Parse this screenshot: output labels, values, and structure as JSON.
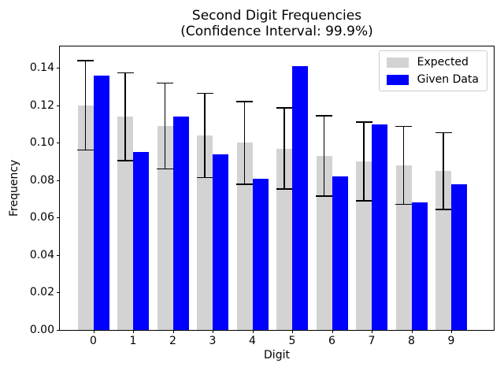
{
  "figure": {
    "title_line1": "Second Digit Frequencies",
    "title_line2": "(Confidence Interval: 99.9%)",
    "xlabel": "Digit",
    "ylabel": "Frequency"
  },
  "legend": {
    "items": [
      {
        "label": "Expected",
        "color": "#d3d3d3"
      },
      {
        "label": "Given Data",
        "color": "#0000ff"
      }
    ]
  },
  "chart_data": {
    "type": "bar",
    "title": "Second Digit Frequencies\n(Confidence Interval: 99.9%)",
    "xlabel": "Digit",
    "ylabel": "Frequency",
    "categories": [
      "0",
      "1",
      "2",
      "3",
      "4",
      "5",
      "6",
      "7",
      "8",
      "9"
    ],
    "series": [
      {
        "name": "Expected",
        "color": "#d3d3d3",
        "values": [
          0.12,
          0.114,
          0.109,
          0.104,
          0.1,
          0.097,
          0.093,
          0.09,
          0.088,
          0.085
        ],
        "error_half_widths": [
          0.0239,
          0.0234,
          0.0229,
          0.0225,
          0.0221,
          0.0217,
          0.0214,
          0.0211,
          0.0208,
          0.0205
        ],
        "error_color": "#000000"
      },
      {
        "name": "Given Data",
        "color": "#0000ff",
        "values": [
          0.136,
          0.095,
          0.114,
          0.094,
          0.081,
          0.141,
          0.082,
          0.11,
          0.068,
          0.078
        ]
      }
    ],
    "ylim": [
      0,
      0.1515
    ],
    "yticks": [
      0.0,
      0.02,
      0.04,
      0.06,
      0.08,
      0.1,
      0.12,
      0.14
    ],
    "grid": false,
    "legend_position": "upper right",
    "bar_width": 0.4
  }
}
